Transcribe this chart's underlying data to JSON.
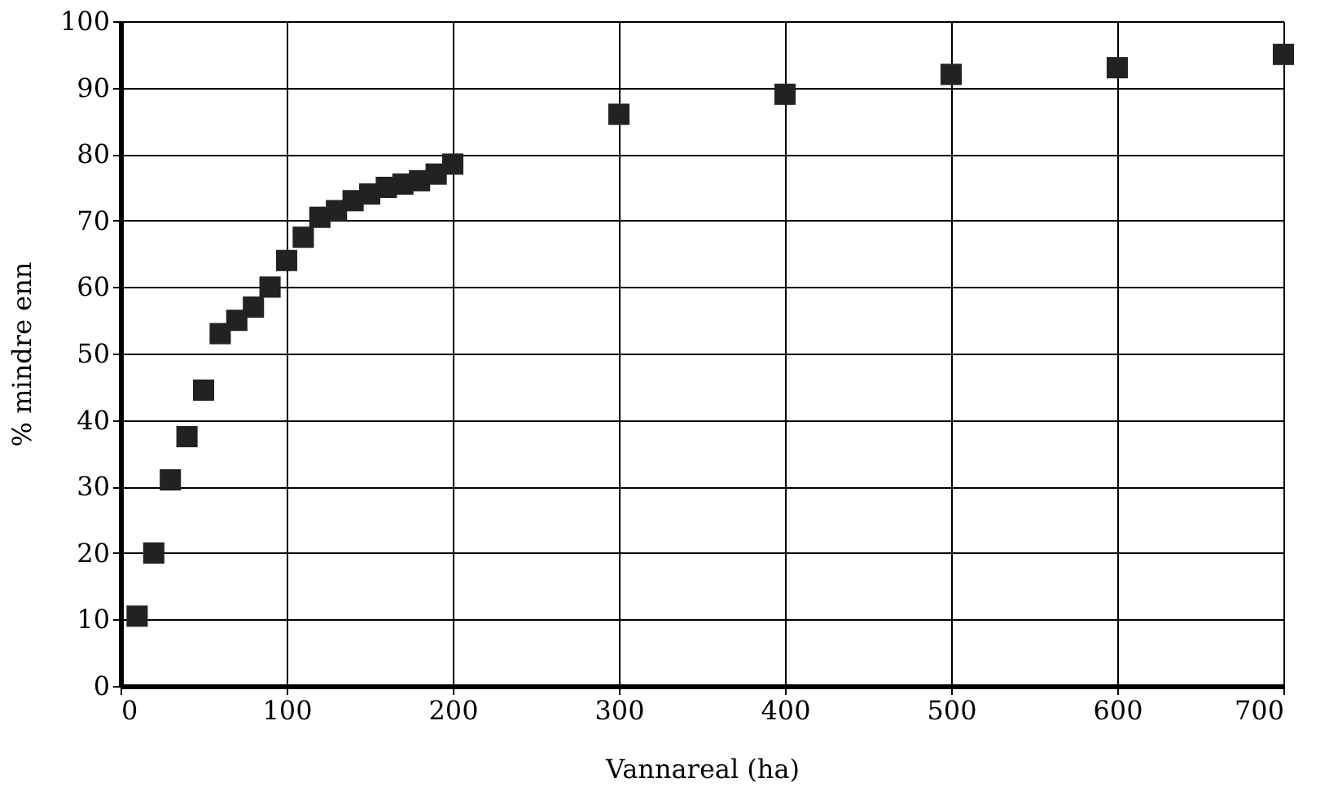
{
  "chart_data": {
    "type": "scatter",
    "xlabel": "Vannareal (ha)",
    "ylabel": "% mindre enn",
    "x": [
      10,
      20,
      30,
      40,
      50,
      60,
      70,
      80,
      90,
      100,
      110,
      120,
      130,
      140,
      150,
      160,
      170,
      180,
      190,
      200,
      300,
      400,
      500,
      600,
      700
    ],
    "series": [
      {
        "color": "#222222",
        "values": [
          10.5,
          20,
          31,
          37.5,
          44.5,
          53,
          55,
          57,
          60,
          64,
          67.5,
          70.5,
          71.5,
          73,
          74,
          75,
          75.5,
          76,
          77,
          78.5,
          86,
          89,
          92,
          93,
          95
        ]
      }
    ],
    "xlim": [
      0,
      700
    ],
    "xticks": [
      0,
      100,
      200,
      300,
      400,
      500,
      600,
      700
    ],
    "ylim": [
      0,
      100
    ],
    "yticks": [
      0,
      10,
      20,
      30,
      40,
      50,
      60,
      70,
      80,
      90,
      100
    ],
    "grid": true,
    "marker": "square"
  }
}
